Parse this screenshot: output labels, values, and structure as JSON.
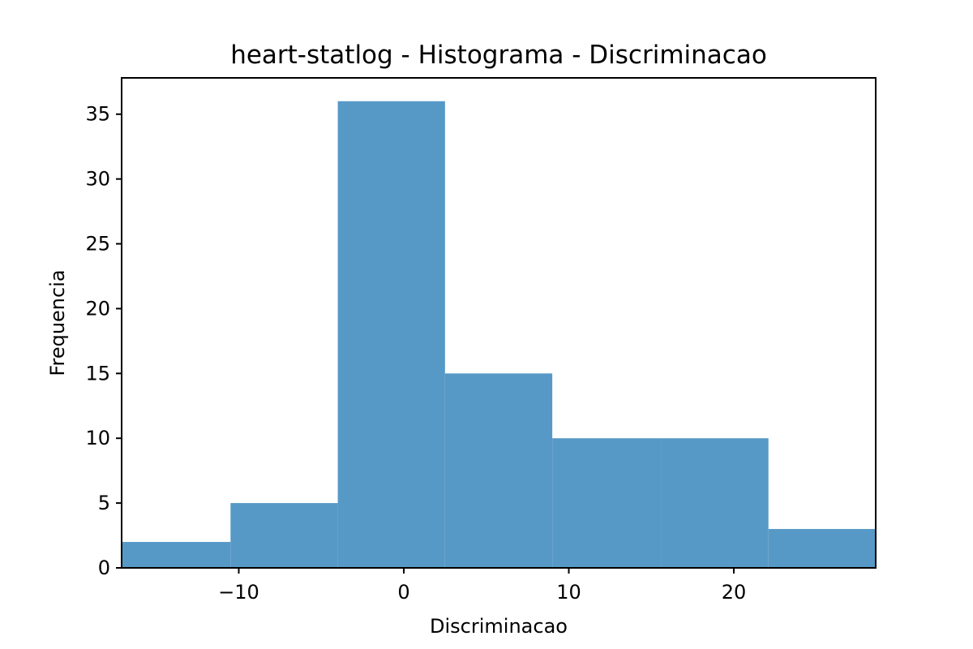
{
  "chart_data": {
    "type": "bar",
    "title": "heart-statlog - Histograma - Discriminacao",
    "xlabel": "Discriminacao",
    "ylabel": "Frequencia",
    "bins": [
      {
        "x0": -17.1,
        "x1": -10.5,
        "count": 2
      },
      {
        "x0": -10.5,
        "x1": -4.0,
        "count": 5
      },
      {
        "x0": -4.0,
        "x1": 2.5,
        "count": 36
      },
      {
        "x0": 2.5,
        "x1": 9.0,
        "count": 15
      },
      {
        "x0": 9.0,
        "x1": 15.6,
        "count": 10
      },
      {
        "x0": 15.6,
        "x1": 22.1,
        "count": 10
      },
      {
        "x0": 22.1,
        "x1": 28.6,
        "count": 3
      }
    ],
    "xlim": [
      -17.1,
      28.6
    ],
    "ylim": [
      0,
      37.8
    ],
    "xticks": [
      -10,
      0,
      10,
      20
    ],
    "xtick_labels": [
      "−10",
      "0",
      "10",
      "20"
    ],
    "yticks": [
      0,
      5,
      10,
      15,
      20,
      25,
      30,
      35
    ],
    "ytick_labels": [
      "0",
      "5",
      "10",
      "15",
      "20",
      "25",
      "30",
      "35"
    ],
    "grid": false,
    "bar_color": "#5799c6"
  }
}
